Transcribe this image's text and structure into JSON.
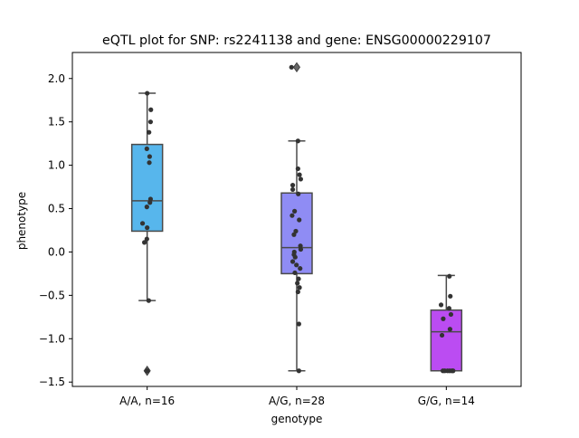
{
  "chart_data": {
    "type": "box",
    "title": "eQTL plot for SNP: rs2241138 and gene: ENSG00000229107",
    "xlabel": "genotype",
    "ylabel": "phenotype",
    "ylim": [
      -1.55,
      2.3
    ],
    "yticks": [
      -1.5,
      -1.0,
      -0.5,
      0.0,
      0.5,
      1.0,
      1.5,
      2.0
    ],
    "ytick_labels": [
      "−1.5",
      "−1.0",
      "−0.5",
      "0.0",
      "0.5",
      "1.0",
      "1.5",
      "2.0"
    ],
    "grid": false,
    "categories": [
      "A/A, n=16",
      "A/G, n=28",
      "G/G, n=14"
    ],
    "boxes": [
      {
        "label": "A/A, n=16",
        "color": "#57b6ec",
        "q1": 0.24,
        "median": 0.59,
        "q3": 1.24,
        "whisker_low": -0.56,
        "whisker_high": 1.83,
        "outliers": [
          -1.37
        ]
      },
      {
        "label": "A/G, n=28",
        "color": "#8f8cf4",
        "q1": -0.25,
        "median": 0.05,
        "q3": 0.68,
        "whisker_low": -1.37,
        "whisker_high": 1.28,
        "outliers": [
          2.13
        ]
      },
      {
        "label": "G/G, n=14",
        "color": "#bb4cf2",
        "q1": -1.37,
        "median": -0.92,
        "q3": -0.67,
        "whisker_low": -1.37,
        "whisker_high": -0.27,
        "outliers": []
      }
    ],
    "points": [
      [
        {
          "dx": 0.0,
          "y": 1.83
        },
        {
          "dx": 0.12,
          "y": 1.64
        },
        {
          "dx": 0.11,
          "y": 1.5
        },
        {
          "dx": 0.06,
          "y": 1.38
        },
        {
          "dx": -0.01,
          "y": 1.19
        },
        {
          "dx": 0.08,
          "y": 1.1
        },
        {
          "dx": 0.07,
          "y": 1.03
        },
        {
          "dx": 0.11,
          "y": 0.61
        },
        {
          "dx": 0.09,
          "y": 0.57
        },
        {
          "dx": -0.01,
          "y": 0.52
        },
        {
          "dx": -0.15,
          "y": 0.33
        },
        {
          "dx": 0.0,
          "y": 0.28
        },
        {
          "dx": -0.01,
          "y": 0.15
        },
        {
          "dx": -0.09,
          "y": 0.11
        },
        {
          "dx": 0.05,
          "y": -0.56
        },
        {
          "dx": 0.0,
          "y": -1.37
        }
      ],
      [
        {
          "dx": -0.17,
          "y": 2.13
        },
        {
          "dx": 0.04,
          "y": 1.28
        },
        {
          "dx": 0.04,
          "y": 0.96
        },
        {
          "dx": 0.09,
          "y": 0.89
        },
        {
          "dx": 0.13,
          "y": 0.84
        },
        {
          "dx": -0.13,
          "y": 0.77
        },
        {
          "dx": -0.13,
          "y": 0.72
        },
        {
          "dx": 0.05,
          "y": 0.67
        },
        {
          "dx": -0.07,
          "y": 0.47
        },
        {
          "dx": -0.15,
          "y": 0.42
        },
        {
          "dx": 0.08,
          "y": 0.37
        },
        {
          "dx": -0.09,
          "y": 0.2
        },
        {
          "dx": -0.03,
          "y": 0.24
        },
        {
          "dx": 0.12,
          "y": 0.07
        },
        {
          "dx": 0.13,
          "y": 0.03
        },
        {
          "dx": -0.08,
          "y": 0.0
        },
        {
          "dx": -0.09,
          "y": -0.03
        },
        {
          "dx": -0.13,
          "y": -0.11
        },
        {
          "dx": -0.05,
          "y": -0.06
        },
        {
          "dx": -0.01,
          "y": -0.15
        },
        {
          "dx": 0.11,
          "y": -0.19
        },
        {
          "dx": -0.06,
          "y": -0.24
        },
        {
          "dx": 0.06,
          "y": -0.31
        },
        {
          "dx": 0.02,
          "y": -0.36
        },
        {
          "dx": 0.09,
          "y": -0.41
        },
        {
          "dx": 0.04,
          "y": -0.46
        },
        {
          "dx": 0.07,
          "y": -0.83
        },
        {
          "dx": 0.07,
          "y": -1.37
        }
      ],
      [
        {
          "dx": 0.1,
          "y": -0.28
        },
        {
          "dx": 0.13,
          "y": -0.51
        },
        {
          "dx": -0.17,
          "y": -0.61
        },
        {
          "dx": 0.09,
          "y": -0.65
        },
        {
          "dx": 0.15,
          "y": -0.72
        },
        {
          "dx": -0.1,
          "y": -0.77
        },
        {
          "dx": 0.12,
          "y": -0.89
        },
        {
          "dx": -0.14,
          "y": -0.96
        },
        {
          "dx": -0.11,
          "y": -1.37
        },
        {
          "dx": -0.05,
          "y": -1.37
        },
        {
          "dx": 0.04,
          "y": -1.37
        },
        {
          "dx": 0.11,
          "y": -1.37
        },
        {
          "dx": 0.18,
          "y": -1.37
        },
        {
          "dx": 0.22,
          "y": -1.37
        }
      ]
    ]
  }
}
